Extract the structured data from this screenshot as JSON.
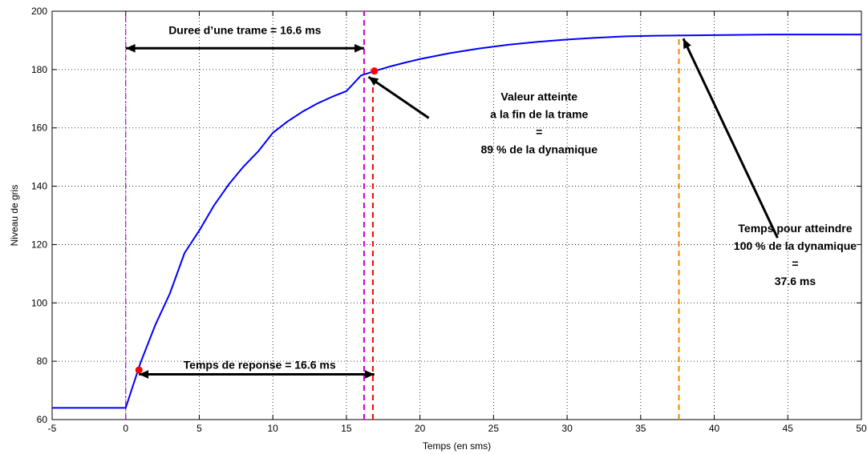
{
  "chart_data": {
    "type": "line",
    "title": "",
    "xlabel": "Temps (en sms)",
    "ylabel": "Niveau de gris",
    "xlim": [
      -5,
      50
    ],
    "ylim": [
      60,
      200
    ],
    "xticks": [
      -5,
      0,
      5,
      10,
      15,
      20,
      25,
      30,
      35,
      40,
      45,
      50
    ],
    "yticks": [
      60,
      80,
      100,
      120,
      140,
      160,
      180,
      200
    ],
    "grid": true,
    "series": [
      {
        "color": "#0000ff",
        "x": [
          -5,
          0,
          1,
          2,
          3,
          4,
          5,
          6,
          7,
          8,
          9,
          10,
          11,
          12,
          13,
          14,
          15,
          16,
          17,
          18,
          19,
          20,
          22,
          24,
          26,
          28,
          30,
          32,
          34,
          36,
          38,
          40,
          42,
          44,
          46,
          48,
          50
        ],
        "y": [
          64,
          64,
          79.4,
          92.3,
          103.2,
          117.1,
          124.8,
          133.4,
          140.6,
          146.7,
          151.9,
          158.3,
          162.2,
          165.5,
          168.3,
          170.6,
          172.6,
          178.0,
          179.6,
          181.1,
          182.4,
          183.6,
          185.6,
          187.2,
          188.5,
          189.5,
          190.3,
          190.9,
          191.4,
          191.6,
          191.7,
          191.8,
          191.9,
          192.0,
          192.0,
          192.0,
          192.0
        ]
      }
    ],
    "points": [
      {
        "x": 0.9,
        "y": 77,
        "color": "#ff0000"
      },
      {
        "x": 16.9,
        "y": 179.5,
        "color": "#ff0000"
      }
    ],
    "vlines": [
      {
        "x": 0,
        "y_from": 60,
        "y_to": 200,
        "color": "#cc00cc",
        "style": "dashdot",
        "width": 1.2
      },
      {
        "x": 16.2,
        "y_from": 60,
        "y_to": 200,
        "color": "#cc00cc",
        "style": "dashed",
        "width": 2
      },
      {
        "x": 16.8,
        "y_from": 60,
        "y_to": 179.5,
        "color": "#ff0000",
        "style": "dashed",
        "width": 2
      },
      {
        "x": 37.6,
        "y_from": 60,
        "y_to": 192,
        "color": "#ee8800",
        "style": "dashed",
        "width": 2
      }
    ],
    "arrows": [
      {
        "x1": 0,
        "y1": 187.3,
        "x2": 16.2,
        "y2": 187.3,
        "double": true
      },
      {
        "x1": 0.9,
        "y1": 75.5,
        "x2": 16.9,
        "y2": 75.5,
        "double": true
      },
      {
        "x1": 20.6,
        "y1": 163.4,
        "x2": 16.5,
        "y2": 177.5,
        "double": false
      },
      {
        "x1": 44.3,
        "y1": 122.3,
        "x2": 37.9,
        "y2": 190.6,
        "double": false
      }
    ],
    "annotations": [
      {
        "lines": [
          "Duree d’une trame = 16.6 ms"
        ],
        "x": 8.1,
        "y": 193.6,
        "anchor": "middle"
      },
      {
        "lines": [
          "Temps de reponse = 16.6 ms"
        ],
        "x": 9.1,
        "y": 78.8,
        "anchor": "middle"
      },
      {
        "lines": [
          "Valeur atteinte",
          "a la fin de la trame",
          "=",
          "89 % de la dynamique"
        ],
        "x": 28.1,
        "y": 161.7,
        "anchor": "middle"
      },
      {
        "lines": [
          "Temps pour atteindre",
          "100 % de la dynamique",
          "=",
          "37.6 ms"
        ],
        "x": 45.5,
        "y": 116.6,
        "anchor": "middle"
      }
    ]
  }
}
